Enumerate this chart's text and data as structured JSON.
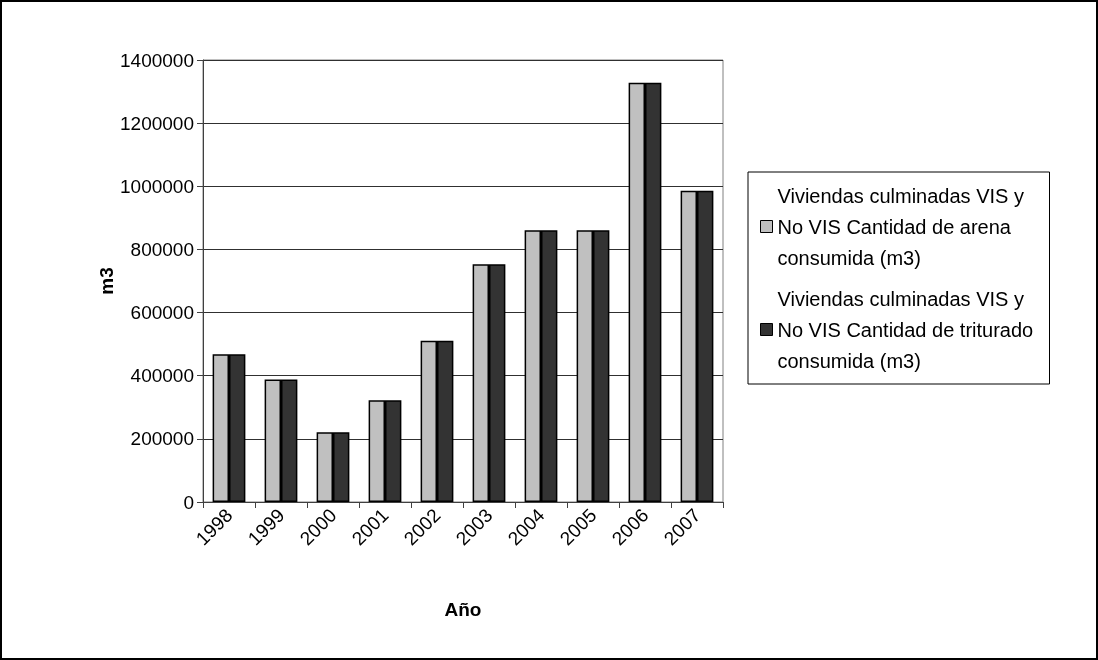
{
  "chart_data": {
    "type": "bar",
    "xlabel": "Año",
    "ylabel": "m3",
    "categories": [
      "1998",
      "1999",
      "2000",
      "2001",
      "2002",
      "2003",
      "2004",
      "2005",
      "2006",
      "2007"
    ],
    "series": [
      {
        "name": "Viviendas culminadas VIS y No VIS Cantidad de arena consumida (m3)",
        "color": "#c0c0c0",
        "values": [
          468000,
          388000,
          221000,
          322000,
          511000,
          753000,
          861000,
          861000,
          1328000,
          986000
        ]
      },
      {
        "name": "Viviendas culminadas VIS y No VIS Cantidad de triturado consumida (m3)",
        "color": "#333333",
        "values": [
          468000,
          388000,
          221000,
          322000,
          511000,
          753000,
          861000,
          861000,
          1328000,
          986000
        ]
      }
    ],
    "ylim": [
      0,
      1400000
    ],
    "yticks": [
      0,
      200000,
      400000,
      600000,
      800000,
      1000000,
      1200000,
      1400000
    ],
    "grid": "y",
    "legend": "right"
  }
}
